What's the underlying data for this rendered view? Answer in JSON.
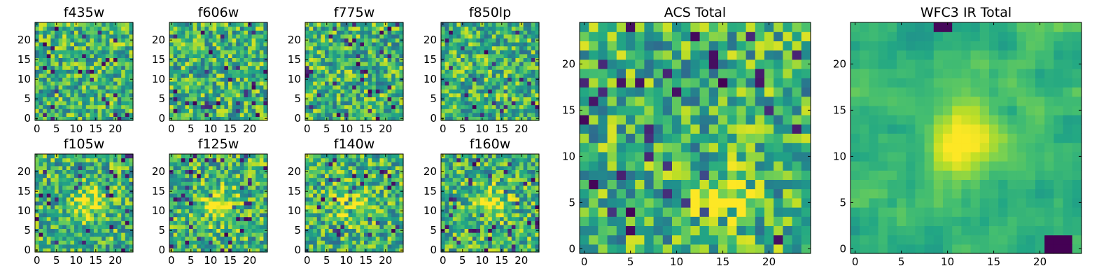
{
  "chart_data": [
    {
      "type": "heatmap",
      "title": "f435w",
      "xlabel": "",
      "ylabel": "",
      "grid_size": 25,
      "xlim": [
        -0.5,
        24.5
      ],
      "ylim": [
        -0.5,
        24.5
      ],
      "xticks": [
        0,
        5,
        10,
        15,
        20
      ],
      "yticks": [
        0,
        5,
        10,
        15,
        20
      ],
      "colormap": "viridis",
      "pattern": "noise",
      "vmin": 0,
      "vmax": 1
    },
    {
      "type": "heatmap",
      "title": "f606w",
      "xlabel": "",
      "ylabel": "",
      "grid_size": 25,
      "xlim": [
        -0.5,
        24.5
      ],
      "ylim": [
        -0.5,
        24.5
      ],
      "xticks": [
        0,
        5,
        10,
        15,
        20
      ],
      "yticks": [
        0,
        5,
        10,
        15,
        20
      ],
      "colormap": "viridis",
      "pattern": "noise",
      "vmin": 0,
      "vmax": 1
    },
    {
      "type": "heatmap",
      "title": "f775w",
      "xlabel": "",
      "ylabel": "",
      "grid_size": 25,
      "xlim": [
        -0.5,
        24.5
      ],
      "ylim": [
        -0.5,
        24.5
      ],
      "xticks": [
        0,
        5,
        10,
        15,
        20
      ],
      "yticks": [
        0,
        5,
        10,
        15,
        20
      ],
      "colormap": "viridis",
      "pattern": "noise",
      "vmin": 0,
      "vmax": 1
    },
    {
      "type": "heatmap",
      "title": "f850lp",
      "xlabel": "",
      "ylabel": "",
      "grid_size": 25,
      "xlim": [
        -0.5,
        24.5
      ],
      "ylim": [
        -0.5,
        24.5
      ],
      "xticks": [
        0,
        5,
        10,
        15,
        20
      ],
      "yticks": [
        0,
        5,
        10,
        15,
        20
      ],
      "colormap": "viridis",
      "pattern": "noise",
      "vmin": 0,
      "vmax": 1
    },
    {
      "type": "heatmap",
      "title": "f105w",
      "xlabel": "",
      "ylabel": "",
      "grid_size": 25,
      "xlim": [
        -0.5,
        24.5
      ],
      "ylim": [
        -0.5,
        24.5
      ],
      "xticks": [
        0,
        5,
        10,
        15,
        20
      ],
      "yticks": [
        0,
        5,
        10,
        15,
        20
      ],
      "colormap": "viridis",
      "pattern": "noise-with-central-source",
      "source_center": [
        12,
        12
      ],
      "vmin": 0,
      "vmax": 1
    },
    {
      "type": "heatmap",
      "title": "f125w",
      "xlabel": "",
      "ylabel": "",
      "grid_size": 25,
      "xlim": [
        -0.5,
        24.5
      ],
      "ylim": [
        -0.5,
        24.5
      ],
      "xticks": [
        0,
        5,
        10,
        15,
        20
      ],
      "yticks": [
        0,
        5,
        10,
        15,
        20
      ],
      "colormap": "viridis",
      "pattern": "noise-with-central-source",
      "source_center": [
        12,
        12
      ],
      "vmin": 0,
      "vmax": 1
    },
    {
      "type": "heatmap",
      "title": "f140w",
      "xlabel": "",
      "ylabel": "",
      "grid_size": 25,
      "xlim": [
        -0.5,
        24.5
      ],
      "ylim": [
        -0.5,
        24.5
      ],
      "xticks": [
        0,
        5,
        10,
        15,
        20
      ],
      "yticks": [
        0,
        5,
        10,
        15,
        20
      ],
      "colormap": "viridis",
      "pattern": "noise-with-central-source",
      "source_center": [
        12,
        12
      ],
      "vmin": 0,
      "vmax": 1
    },
    {
      "type": "heatmap",
      "title": "f160w",
      "xlabel": "",
      "ylabel": "",
      "grid_size": 25,
      "xlim": [
        -0.5,
        24.5
      ],
      "ylim": [
        -0.5,
        24.5
      ],
      "xticks": [
        0,
        5,
        10,
        15,
        20
      ],
      "yticks": [
        0,
        5,
        10,
        15,
        20
      ],
      "colormap": "viridis",
      "pattern": "noise-with-central-source",
      "source_center": [
        12,
        12
      ],
      "vmin": 0,
      "vmax": 1
    },
    {
      "type": "heatmap",
      "title": "ACS Total",
      "xlabel": "",
      "ylabel": "",
      "grid_size": 25,
      "xlim": [
        -0.5,
        24.5
      ],
      "ylim": [
        -0.5,
        24.5
      ],
      "xticks": [
        0,
        5,
        10,
        15,
        20
      ],
      "yticks": [
        0,
        5,
        10,
        15,
        20
      ],
      "colormap": "viridis",
      "pattern": "noise-with-bright-patch",
      "source_center": [
        15,
        5
      ],
      "vmin": 0,
      "vmax": 1
    },
    {
      "type": "heatmap",
      "title": "WFC3 IR Total",
      "xlabel": "",
      "ylabel": "",
      "grid_size": 25,
      "xlim": [
        -0.5,
        24.5
      ],
      "ylim": [
        -0.5,
        24.5
      ],
      "xticks": [
        0,
        5,
        10,
        15,
        20
      ],
      "yticks": [
        0,
        5,
        10,
        15,
        20
      ],
      "colormap": "viridis",
      "pattern": "smooth-with-central-source",
      "source_center": [
        12,
        12
      ],
      "dark_patch_center": [
        21,
        0
      ],
      "vmin": 0,
      "vmax": 1
    }
  ]
}
